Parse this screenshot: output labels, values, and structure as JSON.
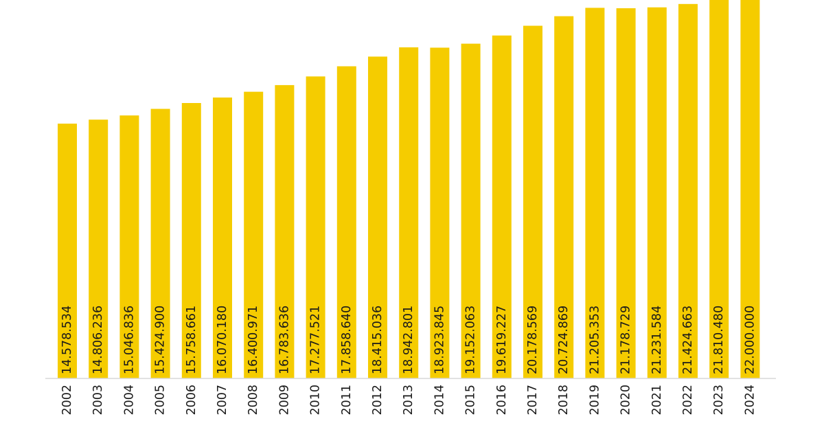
{
  "chart_data": {
    "type": "bar",
    "title": "",
    "xlabel": "",
    "ylabel": "",
    "color": "#F5CC00",
    "categories": [
      "2002",
      "2003",
      "2004",
      "2005",
      "2006",
      "2007",
      "2008",
      "2009",
      "2010",
      "2011",
      "2012",
      "2013",
      "2014",
      "2015",
      "2016",
      "2017",
      "2018",
      "2019",
      "2020",
      "2021",
      "2022",
      "2023",
      "2024"
    ],
    "values": [
      14578534,
      14806236,
      15046836,
      15424900,
      15758661,
      16070180,
      16400971,
      16783636,
      17277521,
      17858640,
      18415036,
      18942801,
      18923845,
      19152063,
      19619227,
      20178569,
      20724869,
      21205353,
      21178729,
      21231584,
      21424663,
      21810480,
      22000000
    ],
    "value_labels": [
      "14.578.534",
      "14.806.236",
      "15.046.836",
      "15.424.900",
      "15.758.661",
      "16.070.180",
      "16.400.971",
      "16.783.636",
      "17.277.521",
      "17.858.640",
      "18.415.036",
      "18.942.801",
      "18.923.845",
      "19.152.063",
      "19.619.227",
      "20.178.569",
      "20.724.869",
      "21.205.353",
      "21.178.729",
      "21.231.584",
      "21.424.663",
      "21.810.480",
      "22.000.000"
    ],
    "grid": false,
    "legend": "none"
  }
}
